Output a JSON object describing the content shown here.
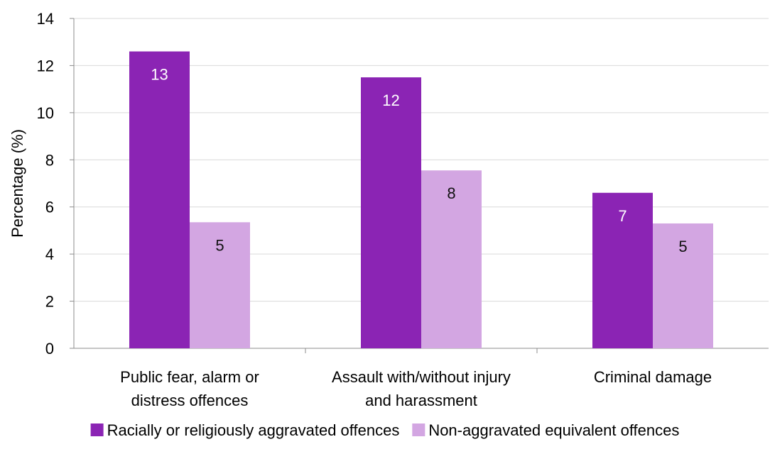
{
  "chart_data": {
    "type": "bar",
    "title": "",
    "xlabel": "",
    "ylabel": "Percentage (%)",
    "ylim": [
      0,
      14
    ],
    "yticks": [
      0,
      2,
      4,
      6,
      8,
      10,
      12,
      14
    ],
    "grid": true,
    "legend_position": "bottom",
    "categories": [
      [
        "Public fear, alarm or",
        "distress offences"
      ],
      [
        "Assault with/without injury",
        "and harassment"
      ],
      [
        "Criminal damage"
      ]
    ],
    "series": [
      {
        "name": "Racially or religiously aggravated offences",
        "color": "#8B24B4",
        "values": [
          12.6,
          11.5,
          6.6
        ],
        "labels": [
          "13",
          "12",
          "7"
        ],
        "label_color": "#ffffff"
      },
      {
        "name": "Non-aggravated equivalent offences",
        "color": "#D3A6E2",
        "values": [
          5.35,
          7.55,
          5.3
        ],
        "labels": [
          "5",
          "8",
          "5"
        ],
        "label_color": "#111111"
      }
    ]
  }
}
